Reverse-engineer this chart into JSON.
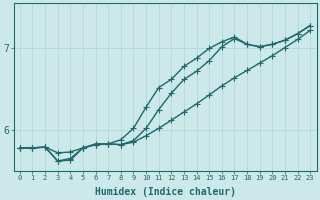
{
  "xlabel": "Humidex (Indice chaleur)",
  "bg_color": "#cce8e8",
  "line_color": "#1a6b6b",
  "grid_color": "#b0d8d8",
  "xlim": [
    -0.5,
    23.5
  ],
  "ylim": [
    5.5,
    7.55
  ],
  "yticks": [
    6,
    7
  ],
  "xticks": [
    0,
    1,
    2,
    3,
    4,
    5,
    6,
    7,
    8,
    9,
    10,
    11,
    12,
    13,
    14,
    15,
    16,
    17,
    18,
    19,
    20,
    21,
    22,
    23
  ],
  "line1_x": [
    0,
    1,
    2,
    3,
    4,
    5,
    6,
    7,
    8,
    9,
    10,
    11,
    12,
    13,
    14,
    15,
    16,
    17,
    18,
    19,
    20,
    21,
    22,
    23
  ],
  "line1_y": [
    5.78,
    5.78,
    5.79,
    5.72,
    5.73,
    5.78,
    5.82,
    5.83,
    5.82,
    5.85,
    5.93,
    6.02,
    6.12,
    6.22,
    6.32,
    6.43,
    6.54,
    6.64,
    6.73,
    6.82,
    6.91,
    7.01,
    7.11,
    7.22
  ],
  "line2_x": [
    0,
    1,
    2,
    3,
    4,
    5,
    6,
    7,
    8,
    9,
    10,
    11,
    12,
    13,
    14,
    15,
    16,
    17,
    18,
    19,
    20,
    21,
    22,
    23
  ],
  "line2_y": [
    5.78,
    5.78,
    5.79,
    5.62,
    5.63,
    5.78,
    5.82,
    5.83,
    5.82,
    5.87,
    6.02,
    6.25,
    6.45,
    6.62,
    6.72,
    6.85,
    7.02,
    7.12,
    7.05,
    7.02,
    7.05,
    7.1,
    7.18,
    7.28
  ],
  "line3_x": [
    0,
    1,
    2,
    3,
    4,
    5,
    6,
    7,
    8,
    9,
    10,
    11,
    12,
    13,
    14,
    15,
    16,
    17,
    18,
    19,
    20,
    21,
    22,
    23
  ],
  "line3_y": [
    5.78,
    5.78,
    5.79,
    5.62,
    5.65,
    5.78,
    5.83,
    5.83,
    5.88,
    6.02,
    6.28,
    6.52,
    6.62,
    6.78,
    6.88,
    7.0,
    7.08,
    7.14,
    7.05,
    7.02,
    7.05,
    7.1,
    7.18,
    7.28
  ],
  "marker_size": 2.8,
  "line_width": 1.0
}
